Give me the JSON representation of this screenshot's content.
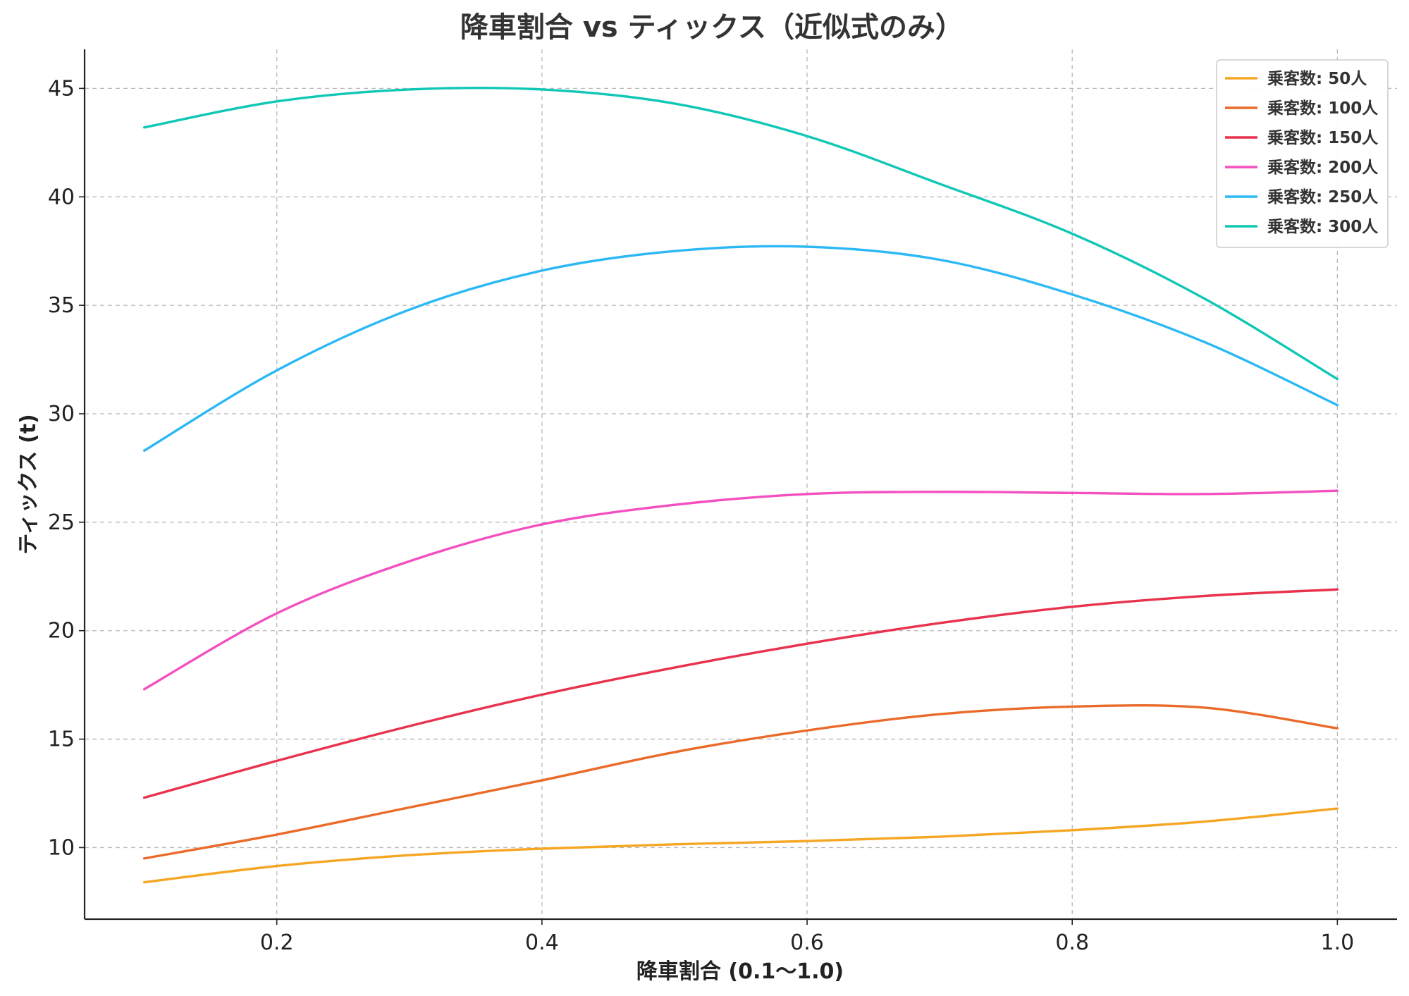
{
  "chart_data": {
    "type": "line",
    "title": "降車割合 vs ティックス（近似式のみ）",
    "xlabel": "降車割合 (0.1〜1.0)",
    "ylabel": "ティックス (t)",
    "xlim": [
      0.055,
      1.045
    ],
    "ylim": [
      6.7,
      46.8
    ],
    "xticks": [
      0.2,
      0.4,
      0.6,
      0.8,
      1.0
    ],
    "xtick_labels": [
      "0.2",
      "0.4",
      "0.6",
      "0.8",
      "1.0"
    ],
    "yticks": [
      10,
      15,
      20,
      25,
      30,
      35,
      40,
      45
    ],
    "ytick_labels": [
      "10",
      "15",
      "20",
      "25",
      "30",
      "35",
      "40",
      "45"
    ],
    "grid": true,
    "legend_position": "top-right",
    "x": [
      0.1,
      0.2,
      0.3,
      0.4,
      0.5,
      0.6,
      0.7,
      0.8,
      0.9,
      1.0
    ],
    "series": [
      {
        "name": "乗客数: 50人",
        "color": "#f5a623",
        "values": [
          8.4,
          9.15,
          9.65,
          9.95,
          10.15,
          10.3,
          10.5,
          10.8,
          11.2,
          11.8
        ]
      },
      {
        "name": "乗客数: 100人",
        "color": "#ea6a2a",
        "values": [
          9.5,
          10.6,
          11.85,
          13.1,
          14.4,
          15.4,
          16.15,
          16.5,
          16.45,
          15.5
        ]
      },
      {
        "name": "乗客数: 150人",
        "color": "#e8324e",
        "values": [
          12.3,
          14.0,
          15.6,
          17.05,
          18.3,
          19.4,
          20.35,
          21.1,
          21.6,
          21.9
        ]
      },
      {
        "name": "乗客数: 200人",
        "color": "#f44fc1",
        "values": [
          17.3,
          20.8,
          23.2,
          24.9,
          25.8,
          26.3,
          26.4,
          26.35,
          26.3,
          26.45
        ]
      },
      {
        "name": "乗客数: 250人",
        "color": "#2bb8f5",
        "values": [
          28.3,
          32.0,
          34.8,
          36.6,
          37.5,
          37.7,
          37.1,
          35.5,
          33.3,
          30.4
        ]
      },
      {
        "name": "乗客数: 300人",
        "color": "#10c7b5",
        "values": [
          43.2,
          44.4,
          44.95,
          44.95,
          44.3,
          42.8,
          40.6,
          38.3,
          35.3,
          31.6
        ]
      }
    ]
  }
}
